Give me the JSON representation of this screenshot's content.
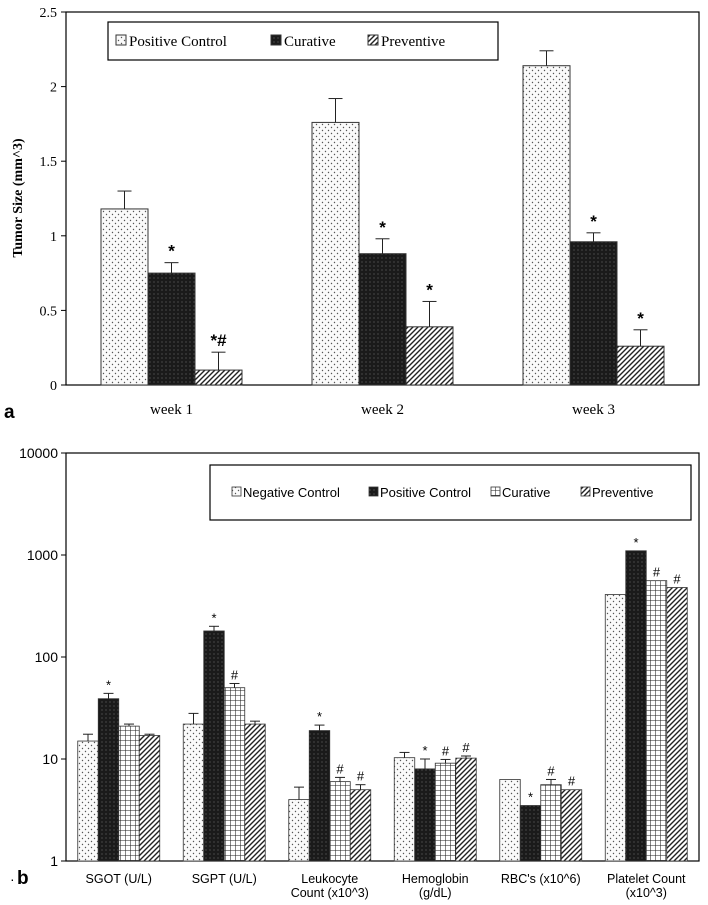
{
  "chart_data": [
    {
      "type": "bar",
      "panel_label": "a",
      "ylabel": "Tumor Size (mm^3)",
      "ylim": [
        0,
        2.5
      ],
      "yticks": [
        0,
        0.5,
        1,
        1.5,
        2,
        2.5
      ],
      "ytick_labels": [
        "0",
        "0.5",
        "1",
        "1.5",
        "2",
        "2.5"
      ],
      "categories": [
        "week 1",
        "week 2",
        "week 3"
      ],
      "legend_position": "top",
      "series": [
        {
          "name": "Positive Control",
          "pattern": "dots",
          "values": [
            1.18,
            1.76,
            2.14
          ],
          "errors": [
            0.12,
            0.16,
            0.1
          ],
          "annotations": [
            "",
            "",
            ""
          ]
        },
        {
          "name": "Curative",
          "pattern": "solid-dark",
          "values": [
            0.75,
            0.88,
            0.96
          ],
          "errors": [
            0.07,
            0.1,
            0.06
          ],
          "annotations": [
            "*",
            "*",
            "*"
          ]
        },
        {
          "name": "Preventive",
          "pattern": "diagonal",
          "values": [
            0.1,
            0.39,
            0.26
          ],
          "errors": [
            0.12,
            0.17,
            0.11
          ],
          "annotations": [
            "*#",
            "*",
            "*"
          ]
        }
      ]
    },
    {
      "type": "bar",
      "panel_label": "b",
      "yscale": "log",
      "ylim": [
        1,
        10000
      ],
      "yticks": [
        1,
        10,
        100,
        1000,
        10000
      ],
      "ytick_labels": [
        "1",
        "10",
        "100",
        "1000",
        "10000"
      ],
      "categories": [
        [
          "SGOT (U/L)"
        ],
        [
          "SGPT (U/L)"
        ],
        [
          "Leukocyte",
          "Count (x10^3)"
        ],
        [
          "Hemoglobin",
          "(g/dL)"
        ],
        [
          "RBC's (x10^6)"
        ],
        [
          "Platelet Count",
          "(x10^3)"
        ]
      ],
      "legend_position": "top-right",
      "series": [
        {
          "name": "Negative Control",
          "pattern": "dots",
          "values": [
            15,
            22,
            4,
            10.3,
            6.3,
            410
          ],
          "errors": [
            2.5,
            6,
            1.3,
            1.3,
            0,
            0
          ],
          "annotations": [
            "",
            "",
            "",
            "",
            "",
            ""
          ]
        },
        {
          "name": "Positive Control",
          "pattern": "solid-dark",
          "values": [
            39,
            180,
            19,
            8,
            3.5,
            1100
          ],
          "errors": [
            5,
            20,
            2.5,
            2,
            0,
            0
          ],
          "annotations": [
            "*",
            "*",
            "*",
            "*",
            "*",
            "*"
          ]
        },
        {
          "name": "Curative",
          "pattern": "grid",
          "values": [
            21,
            50,
            6,
            9.1,
            5.6,
            560
          ],
          "errors": [
            1,
            5,
            0.6,
            0.8,
            0.7,
            0
          ],
          "annotations": [
            "",
            "#",
            "#",
            "#",
            "#",
            "#"
          ]
        },
        {
          "name": "Preventive",
          "pattern": "diagonal",
          "values": [
            17,
            22,
            5,
            10.2,
            5,
            480
          ],
          "errors": [
            0.5,
            1.5,
            0.6,
            0.5,
            0,
            0
          ],
          "annotations": [
            "",
            "",
            "#",
            "#",
            "#",
            "#"
          ]
        }
      ]
    }
  ],
  "colors": {
    "axis": "#000000",
    "bar_outline": "#333333",
    "dark_fill": "#1a1a1a",
    "background": "#ffffff"
  }
}
